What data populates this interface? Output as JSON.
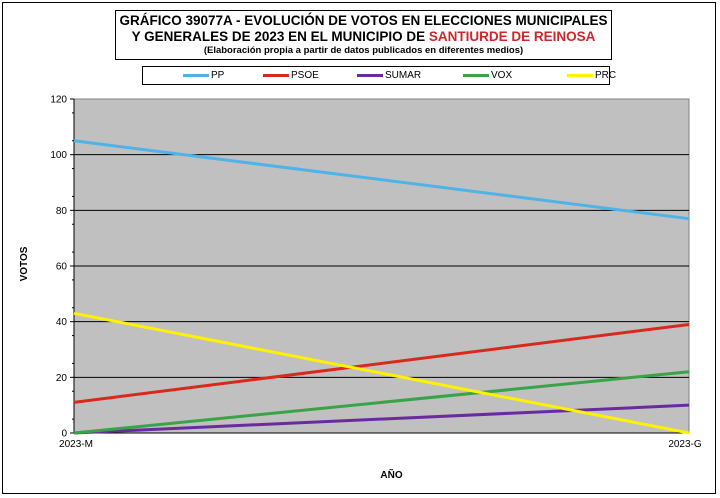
{
  "title": {
    "line1": "GRÁFICO 39077A - EVOLUCIÓN DE VOTOS EN ELECCIONES MUNICIPALES",
    "line2_prefix": "Y GENERALES DE 2023 EN EL MUNICIPIO DE ",
    "line2_highlight": "SANTIURDE DE REINOSA",
    "subtitle": "(Elaboración propia a partir de datos publicados en diferentes medios)",
    "highlight_color": "#d0262a"
  },
  "chart_data": {
    "type": "line",
    "categories": [
      "2023-M",
      "2023-G"
    ],
    "xlabel": "AÑO",
    "ylabel": "VOTOS",
    "ylim": [
      0,
      120
    ],
    "yticks": [
      "0",
      "20",
      "40",
      "60",
      "80",
      "100",
      "120"
    ],
    "grid": true,
    "plot_background": "#c0c0c0",
    "legend_position": "top",
    "series": [
      {
        "name": "PP",
        "color": "#4fb3e8",
        "values": [
          105,
          77
        ]
      },
      {
        "name": "PSOE",
        "color": "#d9291c",
        "values": [
          11,
          39
        ]
      },
      {
        "name": "SUMAR",
        "color": "#6a2aa0",
        "values": [
          0,
          10
        ]
      },
      {
        "name": "VOX",
        "color": "#3aa347",
        "values": [
          0,
          22
        ]
      },
      {
        "name": "PRC",
        "color": "#fff200",
        "values": [
          43,
          0
        ]
      }
    ]
  }
}
